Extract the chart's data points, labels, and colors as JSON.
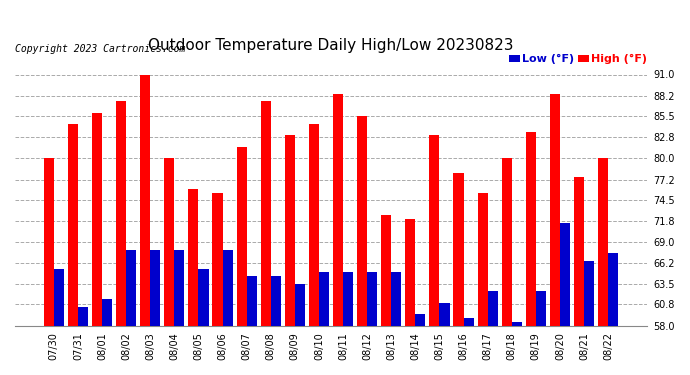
{
  "title": "Outdoor Temperature Daily High/Low 20230823",
  "copyright": "Copyright 2023 Cartronics.com",
  "legend_low": "Low",
  "legend_high": "High",
  "legend_unit": "(°F)",
  "categories": [
    "07/30",
    "07/31",
    "08/01",
    "08/02",
    "08/03",
    "08/04",
    "08/05",
    "08/06",
    "08/07",
    "08/08",
    "08/09",
    "08/10",
    "08/11",
    "08/12",
    "08/13",
    "08/14",
    "08/15",
    "08/16",
    "08/17",
    "08/18",
    "08/19",
    "08/20",
    "08/21",
    "08/22"
  ],
  "high_values": [
    80.0,
    84.5,
    86.0,
    87.5,
    91.0,
    80.0,
    76.0,
    75.5,
    81.5,
    87.5,
    83.0,
    84.5,
    88.5,
    85.5,
    72.5,
    72.0,
    83.0,
    78.0,
    75.5,
    80.0,
    83.5,
    88.5,
    77.5,
    80.0
  ],
  "low_values": [
    65.5,
    60.5,
    61.5,
    68.0,
    68.0,
    68.0,
    65.5,
    68.0,
    64.5,
    64.5,
    63.5,
    65.0,
    65.0,
    65.0,
    65.0,
    59.5,
    61.0,
    59.0,
    62.5,
    58.5,
    62.5,
    71.5,
    66.5,
    67.5
  ],
  "high_color": "#ff0000",
  "low_color": "#0000cc",
  "background_color": "#ffffff",
  "grid_color": "#aaaaaa",
  "ymin": 58.0,
  "ymax": 91.0,
  "yticks": [
    58.0,
    60.8,
    63.5,
    66.2,
    69.0,
    71.8,
    74.5,
    77.2,
    80.0,
    82.8,
    85.5,
    88.2,
    91.0
  ],
  "title_fontsize": 11,
  "copyright_fontsize": 7,
  "legend_fontsize": 8,
  "tick_fontsize": 7,
  "bar_width": 0.42
}
